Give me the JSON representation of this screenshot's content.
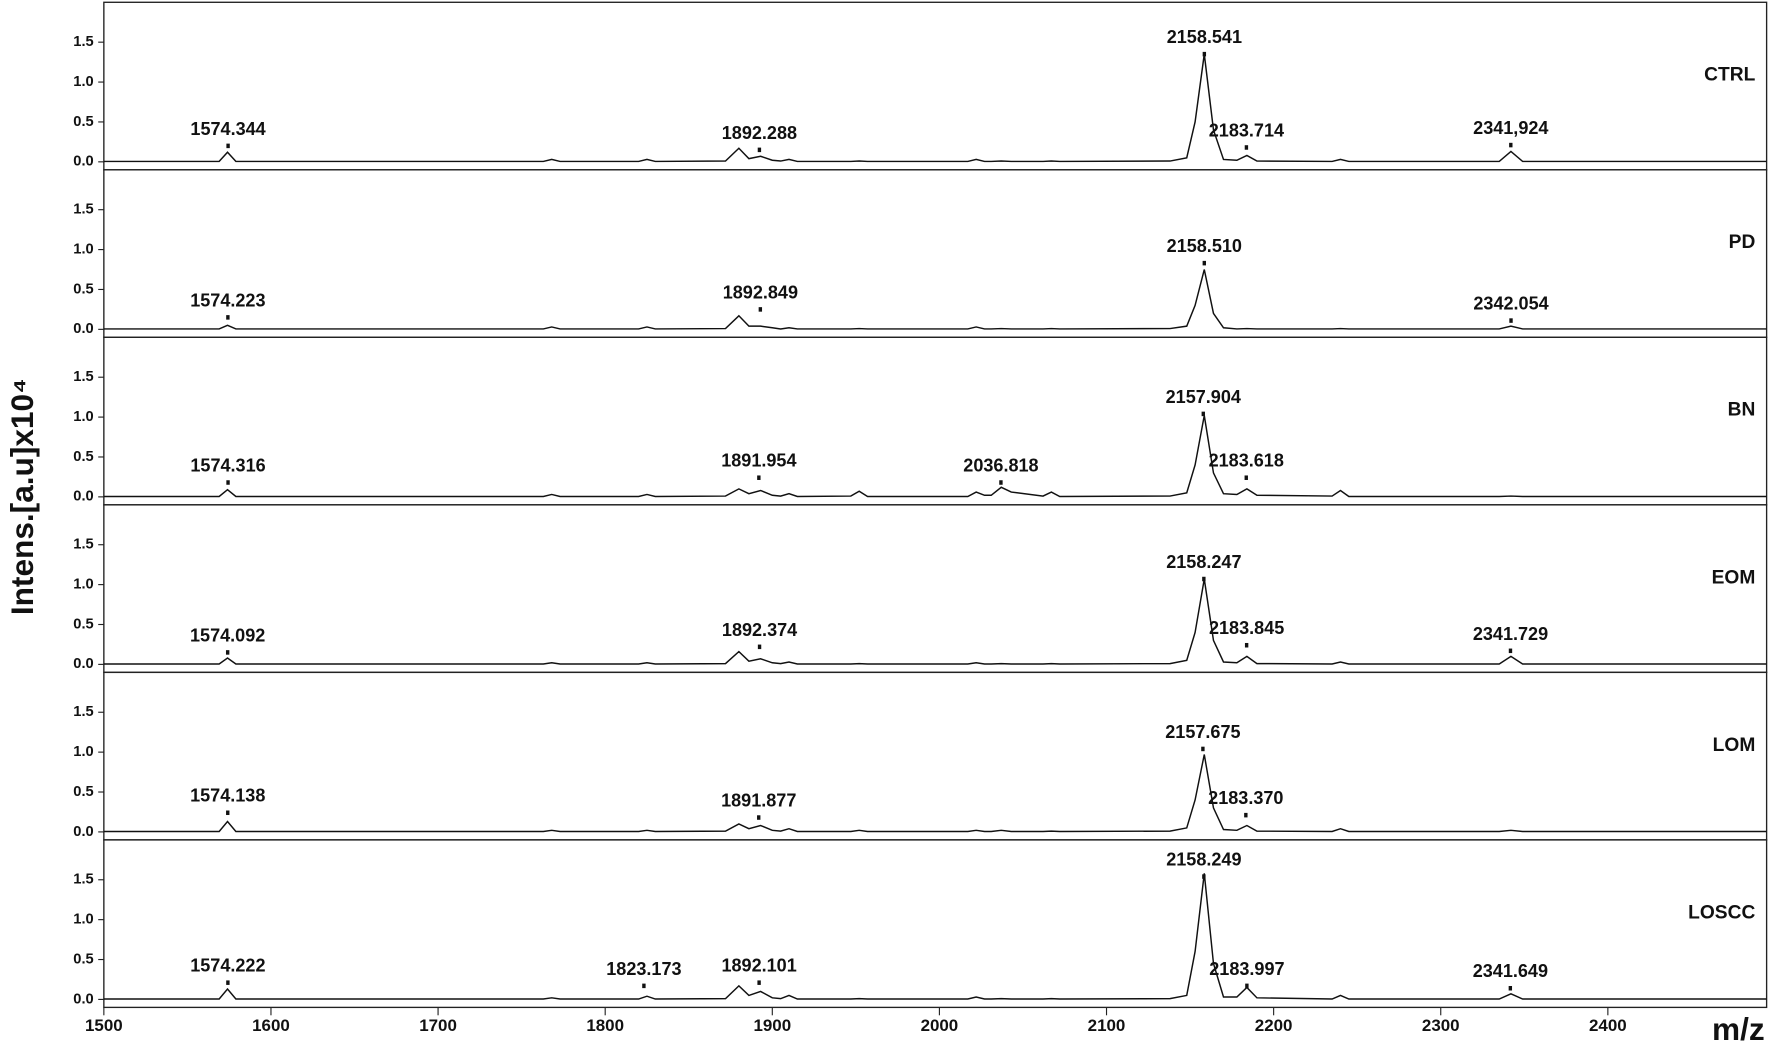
{
  "y_label": "Intens.[a.u]x10⁴",
  "x_label": "m/z",
  "chart_data": [
    {
      "type": "line",
      "name": "CTRL",
      "color": "#111111",
      "xlim": [
        1500,
        2495
      ],
      "ylim": [
        -0.1,
        2.0
      ],
      "yticks": [
        {
          "value": 0,
          "label": "0.0"
        },
        0.5,
        {
          "value": 1,
          "label": "1.0"
        },
        1.5
      ],
      "x": [
        1500,
        1569,
        1574,
        1579,
        1763,
        1768,
        1773,
        1820,
        1825,
        1830,
        1872,
        1880,
        1886,
        1893,
        1900,
        1905,
        1910,
        1915,
        1947,
        1952,
        1957,
        2017,
        2022,
        2027,
        2031,
        2037,
        2043,
        2062,
        2067,
        2072,
        2138,
        2148,
        2153,
        2158.5,
        2164,
        2170,
        2178,
        2184,
        2190,
        2235,
        2240,
        2245,
        2335,
        2342,
        2349,
        2495
      ],
      "values": [
        0.005,
        0.005,
        0.12,
        0.005,
        0.005,
        0.03,
        0.005,
        0.005,
        0.03,
        0.005,
        0.01,
        0.17,
        0.04,
        0.07,
        0.02,
        0.01,
        0.03,
        0.005,
        0.005,
        0.01,
        0.005,
        0.005,
        0.03,
        0.005,
        0.005,
        0.01,
        0.005,
        0.005,
        0.01,
        0.005,
        0.01,
        0.05,
        0.5,
        1.35,
        0.4,
        0.03,
        0.02,
        0.08,
        0.01,
        0.005,
        0.03,
        0.005,
        0.005,
        0.13,
        0.005,
        0.005
      ],
      "annotations": [
        {
          "x": 1574.344,
          "y": 0.2,
          "label": "1574.344"
        },
        {
          "x": 1892.288,
          "y": 0.15,
          "label": "1892.288"
        },
        {
          "x": 2158.541,
          "y": 1.35,
          "label": "2158.541"
        },
        {
          "x": 2183.714,
          "y": 0.18,
          "label": "2183.714"
        },
        {
          "x": 2341.924,
          "y": 0.21,
          "label": "2341,924"
        }
      ]
    },
    {
      "type": "line",
      "name": "PD",
      "color": "#111111",
      "xlim": [
        1500,
        2495
      ],
      "ylim": [
        -0.1,
        2.0
      ],
      "yticks": [
        {
          "value": 0,
          "label": "0.0"
        },
        0.5,
        {
          "value": 1,
          "label": "1.0"
        },
        1.5
      ],
      "x": [
        1500,
        1569,
        1574,
        1579,
        1763,
        1768,
        1773,
        1820,
        1825,
        1830,
        1872,
        1880,
        1886,
        1893,
        1900,
        1905,
        1910,
        1915,
        1947,
        1952,
        1957,
        2017,
        2022,
        2027,
        2031,
        2037,
        2043,
        2062,
        2067,
        2072,
        2138,
        2148,
        2153,
        2158.5,
        2164,
        2170,
        2178,
        2184,
        2190,
        2235,
        2240,
        2245,
        2335,
        2342,
        2349,
        2495
      ],
      "values": [
        0.005,
        0.005,
        0.05,
        0.005,
        0.005,
        0.03,
        0.005,
        0.005,
        0.03,
        0.005,
        0.01,
        0.17,
        0.04,
        0.04,
        0.02,
        0.005,
        0.02,
        0.005,
        0.005,
        0.01,
        0.005,
        0.005,
        0.03,
        0.005,
        0.005,
        0.01,
        0.005,
        0.005,
        0.01,
        0.005,
        0.01,
        0.04,
        0.3,
        0.75,
        0.2,
        0.02,
        0.005,
        0.01,
        0.005,
        0.005,
        0.01,
        0.005,
        0.005,
        0.04,
        0.005,
        0.005
      ],
      "annotations": [
        {
          "x": 1574.223,
          "y": 0.15,
          "label": "1574.223"
        },
        {
          "x": 1892.849,
          "y": 0.25,
          "label": "1892.849"
        },
        {
          "x": 2158.51,
          "y": 0.83,
          "label": "2158.510"
        },
        {
          "x": 2342.054,
          "y": 0.11,
          "label": "2342.054"
        }
      ]
    },
    {
      "type": "line",
      "name": "BN",
      "color": "#111111",
      "xlim": [
        1500,
        2495
      ],
      "ylim": [
        -0.1,
        2.0
      ],
      "yticks": [
        {
          "value": 0,
          "label": "0.0"
        },
        0.5,
        {
          "value": 1,
          "label": "1.0"
        },
        1.5
      ],
      "x": [
        1500,
        1569,
        1574,
        1579,
        1763,
        1768,
        1773,
        1820,
        1825,
        1830,
        1872,
        1880,
        1886,
        1893,
        1900,
        1905,
        1910,
        1915,
        1947,
        1952,
        1957,
        2017,
        2022,
        2027,
        2031,
        2037,
        2043,
        2062,
        2067,
        2072,
        2138,
        2148,
        2153,
        2158.5,
        2164,
        2170,
        2178,
        2184,
        2190,
        2235,
        2240,
        2245,
        2335,
        2342,
        2349,
        2495
      ],
      "values": [
        0.005,
        0.005,
        0.09,
        0.005,
        0.005,
        0.03,
        0.005,
        0.005,
        0.03,
        0.005,
        0.01,
        0.1,
        0.04,
        0.08,
        0.02,
        0.01,
        0.04,
        0.005,
        0.01,
        0.07,
        0.005,
        0.005,
        0.06,
        0.02,
        0.02,
        0.12,
        0.06,
        0.01,
        0.06,
        0.005,
        0.01,
        0.05,
        0.4,
        1.02,
        0.3,
        0.04,
        0.03,
        0.1,
        0.02,
        0.01,
        0.08,
        0.005,
        0.005,
        0.01,
        0.005,
        0.005
      ],
      "annotations": [
        {
          "x": 1574.316,
          "y": 0.18,
          "label": "1574.316"
        },
        {
          "x": 1891.954,
          "y": 0.24,
          "label": "1891.954"
        },
        {
          "x": 2036.818,
          "y": 0.18,
          "label": "2036.818"
        },
        {
          "x": 2157.904,
          "y": 1.04,
          "label": "2157.904"
        },
        {
          "x": 2183.618,
          "y": 0.24,
          "label": "2183.618"
        }
      ]
    },
    {
      "type": "line",
      "name": "EOM",
      "color": "#111111",
      "xlim": [
        1500,
        2495
      ],
      "ylim": [
        -0.1,
        2.0
      ],
      "yticks": [
        {
          "value": 0,
          "label": "0.0"
        },
        0.5,
        {
          "value": 1,
          "label": "1.0"
        },
        1.5
      ],
      "x": [
        1500,
        1569,
        1574,
        1579,
        1763,
        1768,
        1773,
        1820,
        1825,
        1830,
        1872,
        1880,
        1886,
        1893,
        1900,
        1905,
        1910,
        1915,
        1947,
        1952,
        1957,
        2017,
        2022,
        2027,
        2031,
        2037,
        2043,
        2062,
        2067,
        2072,
        2138,
        2148,
        2153,
        2158.5,
        2164,
        2170,
        2178,
        2184,
        2190,
        2235,
        2240,
        2245,
        2335,
        2342,
        2349,
        2495
      ],
      "values": [
        0.005,
        0.005,
        0.08,
        0.005,
        0.005,
        0.02,
        0.005,
        0.005,
        0.02,
        0.005,
        0.01,
        0.16,
        0.04,
        0.07,
        0.02,
        0.01,
        0.03,
        0.005,
        0.005,
        0.01,
        0.005,
        0.005,
        0.02,
        0.005,
        0.005,
        0.01,
        0.005,
        0.005,
        0.01,
        0.005,
        0.01,
        0.05,
        0.4,
        1.07,
        0.3,
        0.03,
        0.02,
        0.1,
        0.01,
        0.005,
        0.03,
        0.005,
        0.005,
        0.1,
        0.005,
        0.005
      ],
      "annotations": [
        {
          "x": 1574.092,
          "y": 0.15,
          "label": "1574.092"
        },
        {
          "x": 1892.374,
          "y": 0.22,
          "label": "1892.374"
        },
        {
          "x": 2158.247,
          "y": 1.07,
          "label": "2158.247"
        },
        {
          "x": 2183.845,
          "y": 0.24,
          "label": "2183.845"
        },
        {
          "x": 2341.729,
          "y": 0.17,
          "label": "2341.729"
        }
      ]
    },
    {
      "type": "line",
      "name": "LOM",
      "color": "#111111",
      "xlim": [
        1500,
        2495
      ],
      "ylim": [
        -0.1,
        2.0
      ],
      "yticks": [
        {
          "value": 0,
          "label": "0.0"
        },
        0.5,
        {
          "value": 1,
          "label": "1.0"
        },
        1.5
      ],
      "x": [
        1500,
        1569,
        1574,
        1579,
        1763,
        1768,
        1773,
        1820,
        1825,
        1830,
        1872,
        1880,
        1886,
        1893,
        1900,
        1905,
        1910,
        1915,
        1947,
        1952,
        1957,
        2017,
        2022,
        2027,
        2031,
        2037,
        2043,
        2062,
        2067,
        2072,
        2138,
        2148,
        2153,
        2158.5,
        2164,
        2170,
        2178,
        2184,
        2190,
        2235,
        2240,
        2245,
        2335,
        2342,
        2349,
        2495
      ],
      "values": [
        0.005,
        0.005,
        0.13,
        0.005,
        0.005,
        0.02,
        0.005,
        0.005,
        0.02,
        0.005,
        0.01,
        0.1,
        0.04,
        0.08,
        0.02,
        0.01,
        0.04,
        0.005,
        0.005,
        0.02,
        0.005,
        0.005,
        0.02,
        0.005,
        0.005,
        0.02,
        0.005,
        0.005,
        0.01,
        0.005,
        0.01,
        0.05,
        0.4,
        0.97,
        0.3,
        0.03,
        0.02,
        0.08,
        0.01,
        0.005,
        0.04,
        0.005,
        0.005,
        0.02,
        0.005,
        0.005
      ],
      "annotations": [
        {
          "x": 1574.138,
          "y": 0.24,
          "label": "1574.138"
        },
        {
          "x": 1891.877,
          "y": 0.18,
          "label": "1891.877"
        },
        {
          "x": 2157.675,
          "y": 1.04,
          "label": "2157.675"
        },
        {
          "x": 2183.37,
          "y": 0.21,
          "label": "2183.370"
        }
      ]
    },
    {
      "type": "line",
      "name": "LOSCC",
      "color": "#111111",
      "xlim": [
        1500,
        2495
      ],
      "ylim": [
        -0.1,
        2.0
      ],
      "yticks": [
        {
          "value": 0,
          "label": "0.0"
        },
        0.5,
        {
          "value": 1,
          "label": "1.0"
        },
        1.5
      ],
      "xticks": [
        1500,
        1600,
        1700,
        1800,
        1900,
        2000,
        2100,
        2200,
        2300,
        2400
      ],
      "x": [
        1500,
        1569,
        1574,
        1579,
        1763,
        1768,
        1773,
        1820,
        1825,
        1830,
        1872,
        1880,
        1886,
        1893,
        1900,
        1905,
        1910,
        1915,
        1947,
        1952,
        1957,
        2017,
        2022,
        2027,
        2031,
        2037,
        2043,
        2062,
        2067,
        2072,
        2138,
        2148,
        2153,
        2158.5,
        2164,
        2170,
        2178,
        2184,
        2190,
        2235,
        2240,
        2245,
        2335,
        2342,
        2349,
        2495
      ],
      "values": [
        0.005,
        0.005,
        0.13,
        0.005,
        0.005,
        0.02,
        0.005,
        0.005,
        0.04,
        0.005,
        0.01,
        0.17,
        0.05,
        0.1,
        0.02,
        0.01,
        0.05,
        0.005,
        0.005,
        0.01,
        0.005,
        0.005,
        0.03,
        0.005,
        0.005,
        0.01,
        0.005,
        0.005,
        0.01,
        0.005,
        0.01,
        0.05,
        0.6,
        1.58,
        0.45,
        0.03,
        0.03,
        0.15,
        0.02,
        0.005,
        0.05,
        0.005,
        0.005,
        0.07,
        0.005,
        0.005
      ],
      "annotations": [
        {
          "x": 1574.222,
          "y": 0.21,
          "label": "1574.222"
        },
        {
          "x": 1823.173,
          "y": 0.17,
          "label": "1823.173"
        },
        {
          "x": 1892.101,
          "y": 0.21,
          "label": "1892.101"
        },
        {
          "x": 2158.249,
          "y": 1.54,
          "label": "2158.249"
        },
        {
          "x": 2183.997,
          "y": 0.17,
          "label": "2183.997"
        },
        {
          "x": 2341.649,
          "y": 0.14,
          "label": "2341.649"
        }
      ]
    }
  ]
}
